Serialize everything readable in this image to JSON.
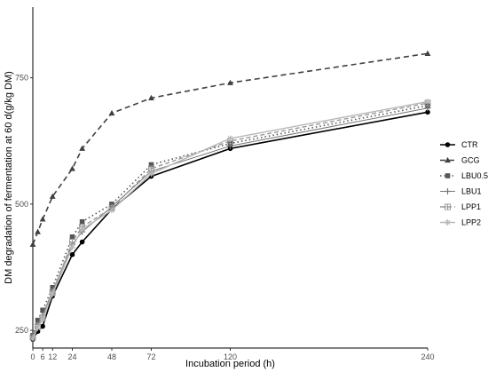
{
  "chart_data": {
    "type": "line",
    "xlabel": "Incubation period (h)",
    "ylabel": "DM degradation of fermentation at 60 d(g/kg DM)",
    "x": [
      0,
      3,
      6,
      12,
      24,
      30,
      48,
      72,
      120,
      240
    ],
    "x_ticks": [
      0,
      6,
      12,
      24,
      48,
      72,
      120,
      240
    ],
    "y_ticks": [
      250,
      500,
      750
    ],
    "xlim": [
      0,
      240
    ],
    "ylim": [
      215,
      890
    ],
    "grid": false,
    "legend_position": "right",
    "series": [
      {
        "name": "CTR",
        "values": [
          232,
          248,
          258,
          318,
          400,
          425,
          490,
          555,
          610,
          682
        ],
        "color": "#000000",
        "dash": "",
        "width": 1.6,
        "marker": "circle"
      },
      {
        "name": "GCG",
        "values": [
          420,
          445,
          470,
          515,
          570,
          610,
          680,
          710,
          740,
          798
        ],
        "color": "#404040",
        "dash": "6,4",
        "width": 1.6,
        "marker": "triangle"
      },
      {
        "name": "LBU0.5",
        "values": [
          240,
          270,
          290,
          335,
          435,
          465,
          500,
          578,
          620,
          695
        ],
        "color": "#555555",
        "dash": "1.5,3",
        "width": 1.6,
        "marker": "square"
      },
      {
        "name": "LBU1",
        "values": [
          238,
          262,
          280,
          328,
          420,
          445,
          495,
          565,
          615,
          690
        ],
        "color": "#777777",
        "dash": "",
        "width": 1.0,
        "marker": "plus"
      },
      {
        "name": "LPP1",
        "values": [
          236,
          258,
          275,
          325,
          425,
          455,
          492,
          570,
          625,
          700
        ],
        "color": "#999999",
        "dash": "5,3",
        "width": 1.4,
        "marker": "boxplus"
      },
      {
        "name": "LPP2",
        "values": [
          234,
          255,
          272,
          322,
          415,
          450,
          488,
          560,
          630,
          703
        ],
        "color": "#b8b8b8",
        "dash": "",
        "width": 1.4,
        "marker": "asterisk"
      }
    ]
  }
}
